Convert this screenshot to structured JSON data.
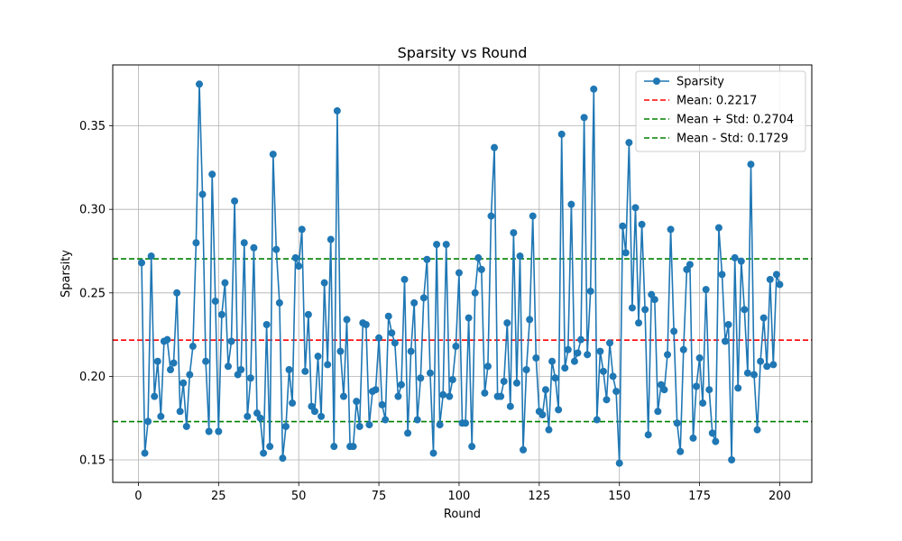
{
  "chart_data": {
    "type": "line",
    "title": "Sparsity vs Round",
    "xlabel": "Round",
    "ylabel": "Sparsity",
    "xlim": [
      -8,
      210
    ],
    "ylim": [
      0.1365,
      0.3865
    ],
    "xticks": [
      0,
      25,
      50,
      75,
      100,
      125,
      150,
      175,
      200
    ],
    "yticks": [
      0.15,
      0.2,
      0.25,
      0.3,
      0.35
    ],
    "ytick_labels": [
      "0.15",
      "0.20",
      "0.25",
      "0.30",
      "0.35"
    ],
    "grid": true,
    "legend_position": "top-right",
    "series": [
      {
        "name": "Sparsity",
        "color": "#1f77b4",
        "marker": "circle",
        "x": [
          1,
          2,
          3,
          4,
          5,
          6,
          7,
          8,
          9,
          10,
          11,
          12,
          13,
          14,
          15,
          16,
          17,
          18,
          19,
          20,
          21,
          22,
          23,
          24,
          25,
          26,
          27,
          28,
          29,
          30,
          31,
          32,
          33,
          34,
          35,
          36,
          37,
          38,
          39,
          40,
          41,
          42,
          43,
          44,
          45,
          46,
          47,
          48,
          49,
          50,
          51,
          52,
          53,
          54,
          55,
          56,
          57,
          58,
          59,
          60,
          61,
          62,
          63,
          64,
          65,
          66,
          67,
          68,
          69,
          70,
          71,
          72,
          73,
          74,
          75,
          76,
          77,
          78,
          79,
          80,
          81,
          82,
          83,
          84,
          85,
          86,
          87,
          88,
          89,
          90,
          91,
          92,
          93,
          94,
          95,
          96,
          97,
          98,
          99,
          100,
          101,
          102,
          103,
          104,
          105,
          106,
          107,
          108,
          109,
          110,
          111,
          112,
          113,
          114,
          115,
          116,
          117,
          118,
          119,
          120,
          121,
          122,
          123,
          124,
          125,
          126,
          127,
          128,
          129,
          130,
          131,
          132,
          133,
          134,
          135,
          136,
          137,
          138,
          139,
          140,
          141,
          142,
          143,
          144,
          145,
          146,
          147,
          148,
          149,
          150,
          151,
          152,
          153,
          154,
          155,
          156,
          157,
          158,
          159,
          160,
          161,
          162,
          163,
          164,
          165,
          166,
          167,
          168,
          169,
          170,
          171,
          172,
          173,
          174,
          175,
          176,
          177,
          178,
          179,
          180,
          181,
          182,
          183,
          184,
          185,
          186,
          187,
          188,
          189,
          190,
          191,
          192,
          193,
          194,
          195,
          196,
          197,
          198,
          199,
          200
        ],
        "y": [
          0.268,
          0.154,
          0.173,
          0.272,
          0.188,
          0.209,
          0.176,
          0.221,
          0.222,
          0.204,
          0.208,
          0.25,
          0.179,
          0.196,
          0.17,
          0.201,
          0.218,
          0.28,
          0.375,
          0.309,
          0.209,
          0.167,
          0.321,
          0.245,
          0.167,
          0.237,
          0.256,
          0.206,
          0.221,
          0.305,
          0.201,
          0.204,
          0.28,
          0.176,
          0.199,
          0.277,
          0.178,
          0.175,
          0.154,
          0.231,
          0.158,
          0.333,
          0.276,
          0.244,
          0.151,
          0.17,
          0.204,
          0.184,
          0.271,
          0.266,
          0.288,
          0.203,
          0.237,
          0.182,
          0.179,
          0.212,
          0.176,
          0.256,
          0.207,
          0.282,
          0.158,
          0.359,
          0.215,
          0.188,
          0.234,
          0.158,
          0.158,
          0.185,
          0.17,
          0.232,
          0.231,
          0.171,
          0.191,
          0.192,
          0.223,
          0.183,
          0.174,
          0.236,
          0.226,
          0.22,
          0.188,
          0.195,
          0.258,
          0.166,
          0.215,
          0.244,
          0.174,
          0.199,
          0.247,
          0.27,
          0.202,
          0.154,
          0.279,
          0.171,
          0.189,
          0.279,
          0.188,
          0.198,
          0.218,
          0.262,
          0.172,
          0.172,
          0.235,
          0.158,
          0.25,
          0.271,
          0.264,
          0.19,
          0.206,
          0.296,
          0.337,
          0.188,
          0.188,
          0.197,
          0.232,
          0.182,
          0.286,
          0.196,
          0.272,
          0.156,
          0.204,
          0.234,
          0.296,
          0.211,
          0.179,
          0.177,
          0.192,
          0.168,
          0.209,
          0.199,
          0.18,
          0.345,
          0.205,
          0.216,
          0.303,
          0.209,
          0.214,
          0.222,
          0.355,
          0.213,
          0.251,
          0.372,
          0.174,
          0.215,
          0.203,
          0.186,
          0.22,
          0.2,
          0.191,
          0.148,
          0.29,
          0.274,
          0.34,
          0.241,
          0.301,
          0.232,
          0.291,
          0.24,
          0.165,
          0.249,
          0.246,
          0.179,
          0.195,
          0.192,
          0.213,
          0.288,
          0.227,
          0.172,
          0.155,
          0.216,
          0.264,
          0.267,
          0.163,
          0.194,
          0.211,
          0.184,
          0.252,
          0.192,
          0.166,
          0.161,
          0.289,
          0.261,
          0.221,
          0.231,
          0.15,
          0.271,
          0.193,
          0.269,
          0.24,
          0.202,
          0.327,
          0.201,
          0.168,
          0.209,
          0.235,
          0.206,
          0.258,
          0.207,
          0.261,
          0.255
        ]
      },
      {
        "name": "Mean: 0.2217",
        "color": "#ff0000",
        "value": 0.2217,
        "style": "dashed"
      },
      {
        "name": "Mean + Std: 0.2704",
        "color": "#008000",
        "value": 0.2704,
        "style": "dashed"
      },
      {
        "name": "Mean - Std: 0.1729",
        "color": "#008000",
        "value": 0.1729,
        "style": "dashed"
      }
    ]
  }
}
